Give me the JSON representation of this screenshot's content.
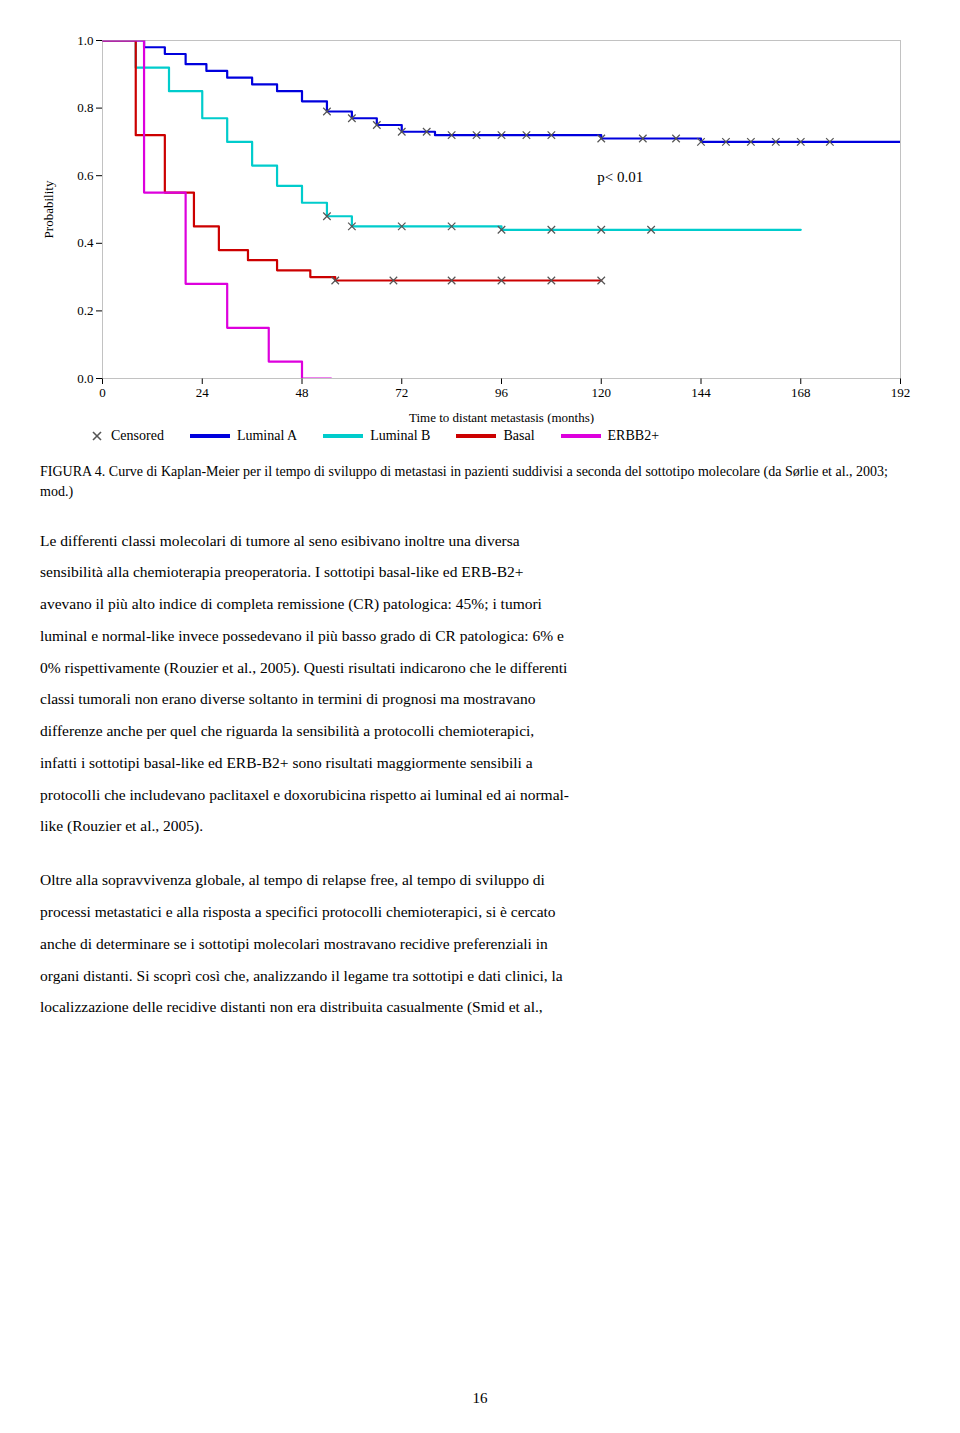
{
  "chart_data": {
    "type": "line",
    "xlabel": "Time to distant metastasis (months)",
    "ylabel": "Probability",
    "xlim": [
      0,
      192
    ],
    "ylim": [
      0,
      1.0
    ],
    "xticks": [
      0,
      24,
      48,
      72,
      96,
      120,
      144,
      168,
      192
    ],
    "yticks": [
      {
        "value": 0,
        "label": "0.0"
      },
      0.2,
      0.4,
      0.6,
      0.8,
      {
        "value": 1,
        "label": "1.0"
      }
    ],
    "grid": false,
    "legend": "bottom",
    "marker": "x",
    "censored_name": "Censored",
    "annotations": [
      "p< 0.01"
    ],
    "series": [
      {
        "name": "Luminal A",
        "color": "#0000dd",
        "line_style": "step",
        "x": [
          0,
          5,
          10,
          15,
          20,
          25,
          30,
          36,
          42,
          48,
          54,
          60,
          66,
          72,
          80,
          96,
          120,
          144,
          168,
          192
        ],
        "values": [
          1.0,
          1.0,
          0.98,
          0.96,
          0.93,
          0.91,
          0.89,
          0.87,
          0.85,
          0.82,
          0.79,
          0.77,
          0.75,
          0.73,
          0.72,
          0.72,
          0.71,
          0.7,
          0.7,
          0.7
        ],
        "censored_x": [
          54,
          60,
          66,
          72,
          78,
          84,
          90,
          96,
          102,
          108,
          120,
          130,
          138,
          144,
          150,
          156,
          162,
          168,
          175
        ],
        "censored_values": [
          0.79,
          0.77,
          0.75,
          0.73,
          0.73,
          0.72,
          0.72,
          0.72,
          0.72,
          0.72,
          0.71,
          0.71,
          0.71,
          0.7,
          0.7,
          0.7,
          0.7,
          0.7,
          0.7
        ]
      },
      {
        "name": "Luminal B",
        "color": "#00cccc",
        "line_style": "step",
        "x": [
          0,
          8,
          16,
          24,
          30,
          36,
          42,
          48,
          54,
          60,
          72,
          84,
          96,
          108,
          120,
          144,
          168
        ],
        "values": [
          1.0,
          0.92,
          0.85,
          0.77,
          0.7,
          0.63,
          0.57,
          0.52,
          0.48,
          0.45,
          0.45,
          0.45,
          0.44,
          0.44,
          0.44,
          0.44,
          0.44
        ],
        "censored_x": [
          54,
          60,
          72,
          84,
          96,
          108,
          120,
          132
        ],
        "censored_values": [
          0.48,
          0.45,
          0.45,
          0.45,
          0.44,
          0.44,
          0.44,
          0.44
        ]
      },
      {
        "name": "Basal",
        "color": "#cc0000",
        "line_style": "step",
        "x": [
          0,
          8,
          15,
          22,
          28,
          35,
          42,
          50,
          56,
          60,
          72,
          96,
          120
        ],
        "values": [
          1.0,
          0.72,
          0.55,
          0.45,
          0.38,
          0.35,
          0.32,
          0.3,
          0.29,
          0.29,
          0.29,
          0.29,
          0.29
        ],
        "censored_x": [
          56,
          70,
          84,
          96,
          108,
          120
        ],
        "censored_values": [
          0.29,
          0.29,
          0.29,
          0.29,
          0.29,
          0.29
        ]
      },
      {
        "name": "ERBB2+",
        "color": "#dd00dd",
        "line_style": "step",
        "x": [
          0,
          10,
          20,
          30,
          40,
          48,
          55
        ],
        "values": [
          1.0,
          0.55,
          0.28,
          0.15,
          0.05,
          0.0,
          0.0
        ]
      }
    ],
    "caption": "FIGURA 4. Curve di Kaplan-Meier per il tempo di sviluppo di metastasi in pazienti suddivisi a seconda del sottotipo molecolare (da Sørlie et al., 2003; mod.)"
  },
  "paragraphs": [
    [
      "Le differenti classi molecolari di tumore al seno esibivano inoltre una diversa",
      "sensibilità alla chemioterapia preoperatoria. I sottotipi basal-like ed ERB-B2+",
      "avevano il più alto indice di completa remissione (CR) patologica: 45%; i tumori",
      "luminal e normal-like invece possedevano il più basso grado di CR patologica: 6% e",
      "0% rispettivamente (Rouzier et al., 2005). Questi risultati indicarono che le differenti",
      "classi tumorali non erano diverse soltanto in termini di prognosi ma mostravano",
      "differenze anche per quel che riguarda la sensibilità a protocolli chemioterapici,",
      "infatti i sottotipi basal-like ed ERB-B2+ sono risultati maggiormente sensibili a",
      "protocolli che includevano paclitaxel e doxorubicina rispetto ai luminal ed ai normal-",
      "like (Rouzier et al., 2005)."
    ],
    [
      "Oltre alla sopravvivenza globale, al tempo di relapse free, al tempo di sviluppo di",
      "processi metastatici e alla risposta a specifici protocolli chemioterapici, si è cercato",
      "anche di determinare se i sottotipi molecolari mostravano recidive preferenziali in",
      "organi distanti. Si scoprì così che, analizzando il legame tra sottotipi e dati clinici, la",
      "localizzazione delle recidive distanti non era distribuita casualmente (Smid et al.,"
    ]
  ],
  "page_number": "16"
}
